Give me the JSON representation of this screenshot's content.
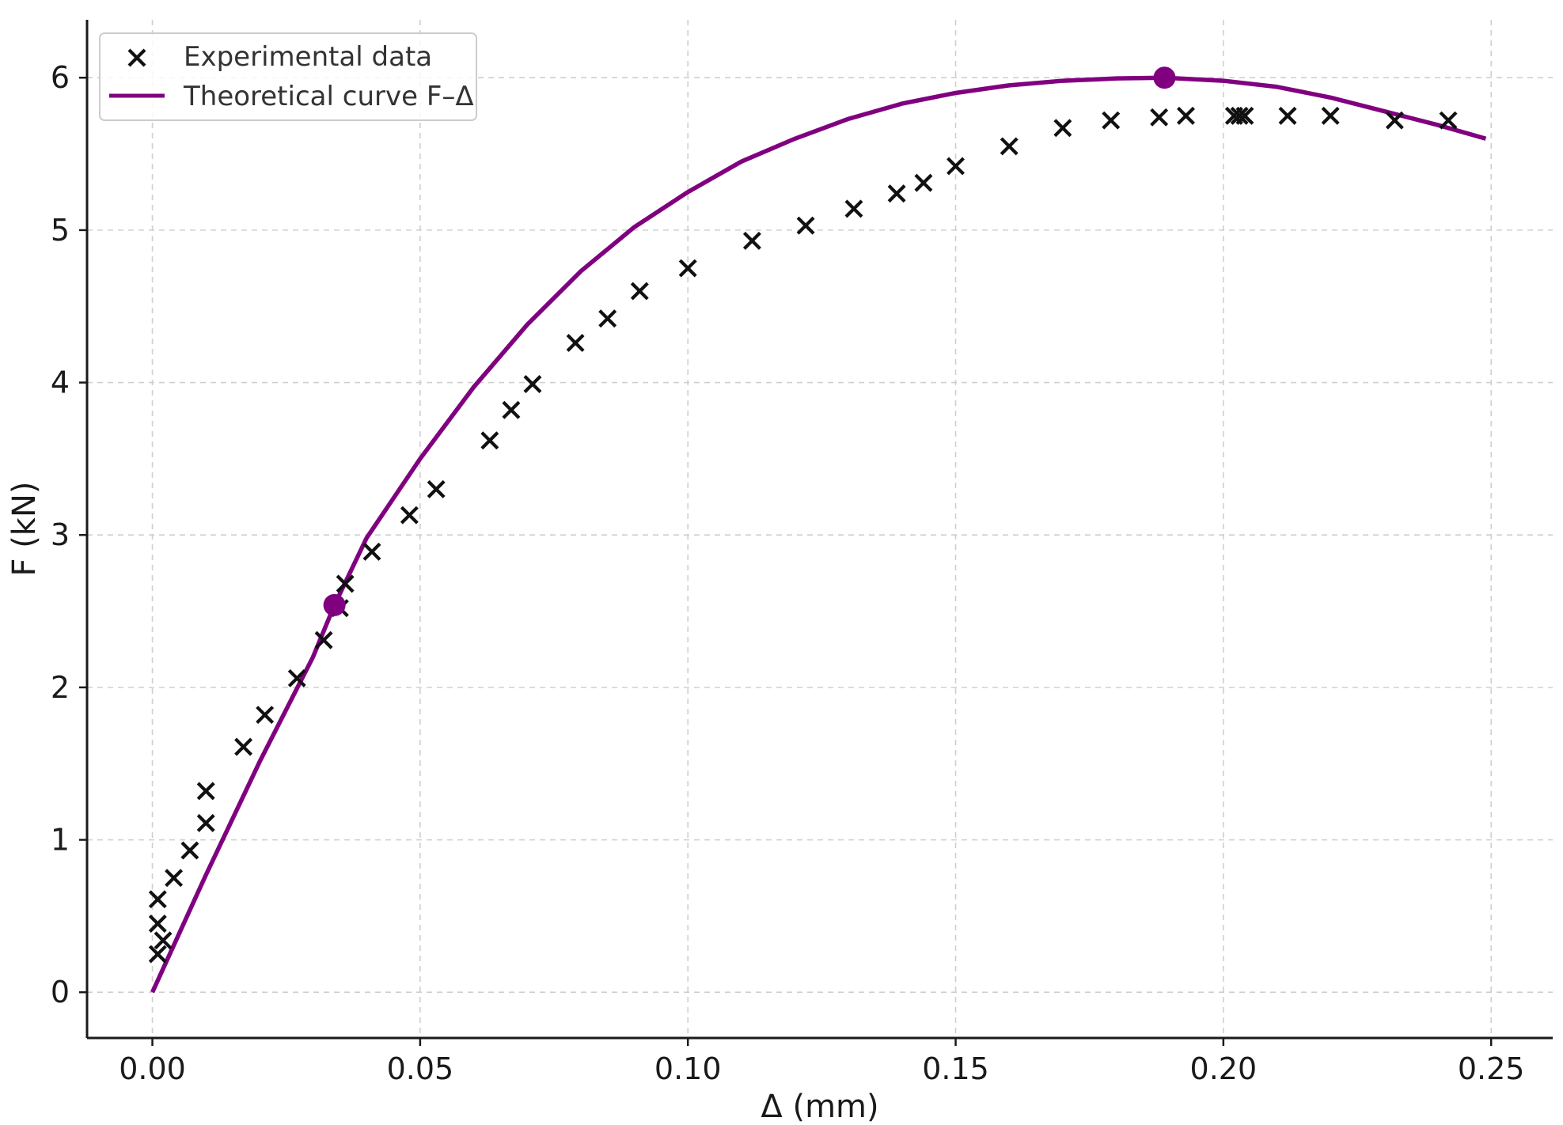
{
  "colors": {
    "curve": "#800080",
    "marker": "#111111",
    "grid": "#cfcfcf",
    "axis": "#1a1a1a"
  },
  "chart_data": {
    "type": "scatter",
    "title": "",
    "xlabel": "Δ (mm)",
    "ylabel": "F (kN)",
    "xlim": [
      -0.0122,
      0.2615
    ],
    "ylim": [
      -0.3,
      6.38
    ],
    "x_ticks": [
      0.0,
      0.05,
      0.1,
      0.15,
      0.2,
      0.25
    ],
    "x_tick_labels": [
      "0.00",
      "0.05",
      "0.10",
      "0.15",
      "0.20",
      "0.25"
    ],
    "y_ticks": [
      0,
      1,
      2,
      3,
      4,
      5,
      6
    ],
    "y_tick_labels": [
      "0",
      "1",
      "2",
      "3",
      "4",
      "5",
      "6"
    ],
    "grid": true,
    "legend_position": "top-left",
    "legend": [
      {
        "label": "Experimental data",
        "marker": "x"
      },
      {
        "label": "Theoretical curve F–Δ",
        "marker": "line"
      }
    ],
    "series": [
      {
        "name": "Experimental data",
        "kind": "scatter",
        "marker": "x",
        "points": [
          [
            0.001,
            0.25
          ],
          [
            0.002,
            0.34
          ],
          [
            0.001,
            0.45
          ],
          [
            0.001,
            0.61
          ],
          [
            0.004,
            0.75
          ],
          [
            0.007,
            0.93
          ],
          [
            0.01,
            1.11
          ],
          [
            0.01,
            1.32
          ],
          [
            0.017,
            1.61
          ],
          [
            0.021,
            1.82
          ],
          [
            0.027,
            2.06
          ],
          [
            0.032,
            2.31
          ],
          [
            0.035,
            2.52
          ],
          [
            0.036,
            2.68
          ],
          [
            0.041,
            2.89
          ],
          [
            0.048,
            3.13
          ],
          [
            0.053,
            3.3
          ],
          [
            0.063,
            3.62
          ],
          [
            0.067,
            3.82
          ],
          [
            0.071,
            3.99
          ],
          [
            0.079,
            4.26
          ],
          [
            0.085,
            4.42
          ],
          [
            0.091,
            4.6
          ],
          [
            0.1,
            4.75
          ],
          [
            0.112,
            4.93
          ],
          [
            0.122,
            5.03
          ],
          [
            0.131,
            5.14
          ],
          [
            0.139,
            5.24
          ],
          [
            0.144,
            5.31
          ],
          [
            0.15,
            5.42
          ],
          [
            0.16,
            5.55
          ],
          [
            0.17,
            5.67
          ],
          [
            0.179,
            5.72
          ],
          [
            0.188,
            5.74
          ],
          [
            0.193,
            5.75
          ],
          [
            0.202,
            5.75
          ],
          [
            0.203,
            5.75
          ],
          [
            0.204,
            5.75
          ],
          [
            0.212,
            5.75
          ],
          [
            0.22,
            5.75
          ],
          [
            0.232,
            5.72
          ],
          [
            0.242,
            5.72
          ]
        ]
      },
      {
        "name": "Theoretical curve F–Δ",
        "kind": "line",
        "points": [
          [
            0.0,
            0.0
          ],
          [
            0.01,
            0.77
          ],
          [
            0.02,
            1.51
          ],
          [
            0.03,
            2.2
          ],
          [
            0.034,
            2.54
          ],
          [
            0.04,
            2.98
          ],
          [
            0.05,
            3.5
          ],
          [
            0.06,
            3.97
          ],
          [
            0.07,
            4.38
          ],
          [
            0.08,
            4.73
          ],
          [
            0.09,
            5.02
          ],
          [
            0.1,
            5.25
          ],
          [
            0.11,
            5.45
          ],
          [
            0.12,
            5.6
          ],
          [
            0.13,
            5.73
          ],
          [
            0.14,
            5.83
          ],
          [
            0.15,
            5.9
          ],
          [
            0.16,
            5.95
          ],
          [
            0.17,
            5.98
          ],
          [
            0.18,
            5.995
          ],
          [
            0.189,
            6.0
          ],
          [
            0.2,
            5.98
          ],
          [
            0.21,
            5.94
          ],
          [
            0.22,
            5.87
          ],
          [
            0.23,
            5.78
          ],
          [
            0.24,
            5.69
          ],
          [
            0.249,
            5.6
          ]
        ]
      },
      {
        "name": "",
        "kind": "highlight",
        "points": [
          [
            0.034,
            2.54
          ],
          [
            0.189,
            6.0
          ]
        ]
      }
    ]
  }
}
